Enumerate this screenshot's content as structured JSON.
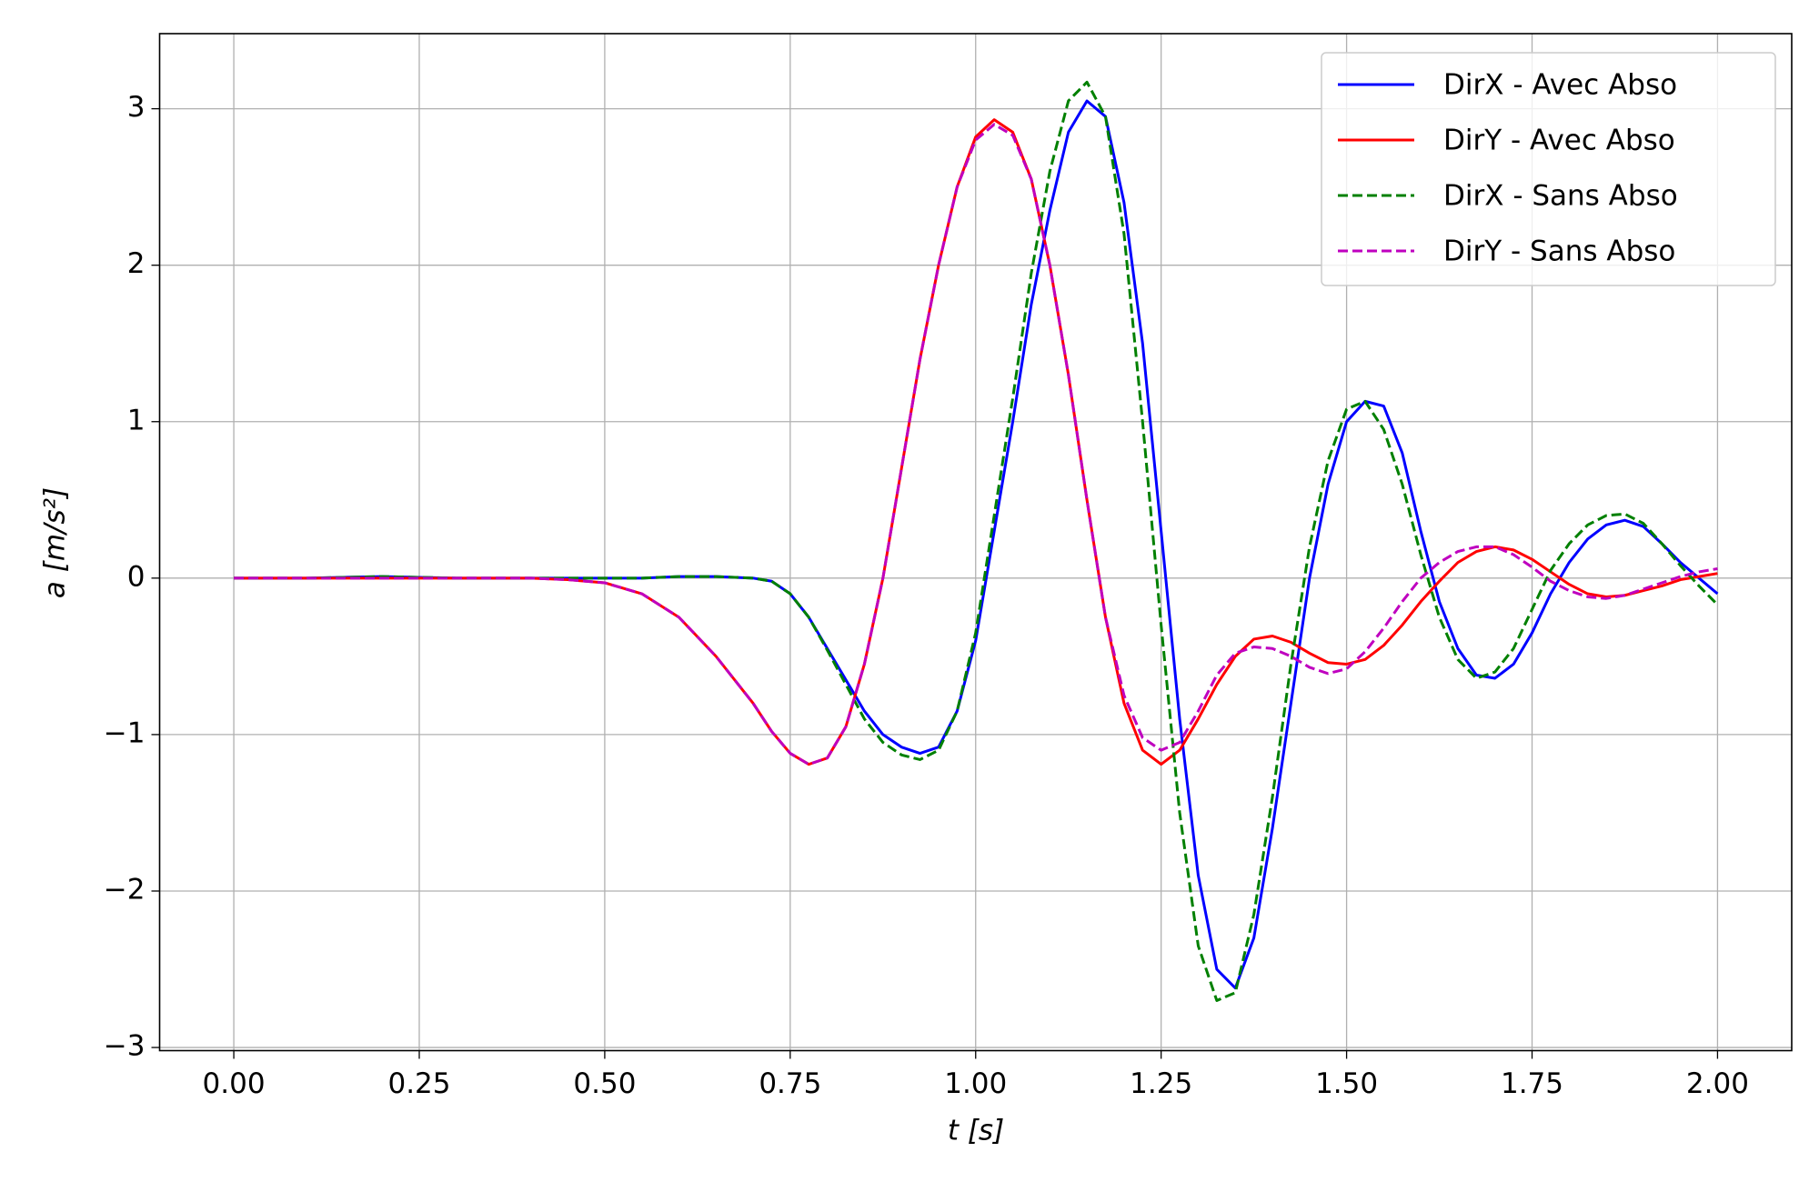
{
  "chart_data": {
    "type": "line",
    "x_label": "t [s]",
    "y_label": "a [m/s²]",
    "xlim": [
      -0.1,
      2.1
    ],
    "ylim": [
      -3.02,
      3.48
    ],
    "xticks": [
      {
        "value": 0,
        "label": "0.00"
      },
      {
        "value": 0.25,
        "label": "0.25"
      },
      {
        "value": 0.5,
        "label": "0.50"
      },
      {
        "value": 0.75,
        "label": "0.75"
      },
      {
        "value": 1,
        "label": "1.00"
      },
      {
        "value": 1.25,
        "label": "1.25"
      },
      {
        "value": 1.5,
        "label": "1.50"
      },
      {
        "value": 1.75,
        "label": "1.75"
      },
      {
        "value": 2,
        "label": "2.00"
      }
    ],
    "yticks": [
      {
        "value": -3,
        "label": "−3"
      },
      {
        "value": -2,
        "label": "−2"
      },
      {
        "value": -1,
        "label": "−1"
      },
      0,
      1,
      2,
      3
    ],
    "grid": true,
    "legend": "upper right",
    "x": [
      0,
      0.1,
      0.2,
      0.3,
      0.4,
      0.45,
      0.5,
      0.55,
      0.6,
      0.65,
      0.7,
      0.725,
      0.75,
      0.775,
      0.8,
      0.825,
      0.85,
      0.875,
      0.9,
      0.925,
      0.95,
      0.975,
      1.0,
      1.025,
      1.05,
      1.075,
      1.1,
      1.125,
      1.15,
      1.175,
      1.2,
      1.225,
      1.25,
      1.275,
      1.3,
      1.325,
      1.35,
      1.375,
      1.4,
      1.425,
      1.45,
      1.475,
      1.5,
      1.525,
      1.55,
      1.575,
      1.6,
      1.625,
      1.65,
      1.675,
      1.7,
      1.725,
      1.75,
      1.775,
      1.8,
      1.825,
      1.85,
      1.875,
      1.9,
      1.925,
      1.95,
      1.975,
      2.0
    ],
    "series": [
      {
        "name": "DirX - Avec Abso",
        "color": "#0000ff",
        "linestyle": "solid",
        "values": [
          0,
          0,
          0.01,
          0,
          0,
          0,
          0,
          0,
          0.01,
          0.01,
          0,
          -0.02,
          -0.1,
          -0.25,
          -0.45,
          -0.65,
          -0.85,
          -1.0,
          -1.08,
          -1.12,
          -1.08,
          -0.85,
          -0.4,
          0.3,
          1.0,
          1.75,
          2.35,
          2.85,
          3.05,
          2.95,
          2.4,
          1.5,
          0.3,
          -0.9,
          -1.9,
          -2.5,
          -2.62,
          -2.3,
          -1.6,
          -0.8,
          0,
          0.6,
          1.0,
          1.13,
          1.1,
          0.8,
          0.3,
          -0.15,
          -0.45,
          -0.62,
          -0.64,
          -0.55,
          -0.35,
          -0.1,
          0.1,
          0.25,
          0.34,
          0.37,
          0.33,
          0.22,
          0.1,
          0,
          -0.1
        ]
      },
      {
        "name": "DirY - Avec Abso",
        "color": "#ff0000",
        "linestyle": "solid",
        "values": [
          0,
          0,
          0,
          0,
          0,
          -0.01,
          -0.03,
          -0.1,
          -0.25,
          -0.5,
          -0.8,
          -0.98,
          -1.12,
          -1.19,
          -1.15,
          -0.95,
          -0.55,
          0,
          0.7,
          1.4,
          2.0,
          2.5,
          2.82,
          2.93,
          2.85,
          2.55,
          2.0,
          1.3,
          0.5,
          -0.25,
          -0.8,
          -1.1,
          -1.19,
          -1.1,
          -0.9,
          -0.68,
          -0.5,
          -0.39,
          -0.37,
          -0.41,
          -0.48,
          -0.54,
          -0.55,
          -0.52,
          -0.43,
          -0.3,
          -0.15,
          -0.02,
          0.1,
          0.17,
          0.2,
          0.18,
          0.12,
          0.04,
          -0.04,
          -0.1,
          -0.12,
          -0.11,
          -0.08,
          -0.05,
          -0.01,
          0.01,
          0.03
        ]
      },
      {
        "name": "DirX - Sans Abso",
        "color": "#008000",
        "linestyle": "dashed",
        "values": [
          0,
          0,
          0.01,
          0,
          0,
          0,
          0,
          0,
          0.01,
          0.01,
          0,
          -0.02,
          -0.1,
          -0.25,
          -0.46,
          -0.68,
          -0.9,
          -1.05,
          -1.13,
          -1.16,
          -1.1,
          -0.85,
          -0.35,
          0.4,
          1.15,
          1.95,
          2.6,
          3.05,
          3.17,
          2.95,
          2.2,
          1.0,
          -0.3,
          -1.5,
          -2.35,
          -2.7,
          -2.65,
          -2.15,
          -1.4,
          -0.55,
          0.2,
          0.75,
          1.08,
          1.13,
          0.95,
          0.6,
          0.15,
          -0.25,
          -0.52,
          -0.64,
          -0.6,
          -0.45,
          -0.2,
          0.05,
          0.22,
          0.34,
          0.4,
          0.41,
          0.35,
          0.22,
          0.08,
          -0.05,
          -0.17
        ]
      },
      {
        "name": "DirY - Sans Abso",
        "color": "#bf00bf",
        "linestyle": "dashed",
        "values": [
          0,
          0,
          0,
          0,
          0,
          -0.01,
          -0.03,
          -0.1,
          -0.25,
          -0.5,
          -0.8,
          -0.98,
          -1.12,
          -1.19,
          -1.15,
          -0.95,
          -0.55,
          0,
          0.7,
          1.4,
          2.0,
          2.5,
          2.8,
          2.9,
          2.83,
          2.55,
          2.0,
          1.3,
          0.5,
          -0.25,
          -0.75,
          -1.02,
          -1.1,
          -1.05,
          -0.85,
          -0.62,
          -0.48,
          -0.44,
          -0.45,
          -0.5,
          -0.57,
          -0.61,
          -0.58,
          -0.47,
          -0.32,
          -0.15,
          0,
          0.1,
          0.17,
          0.2,
          0.2,
          0.15,
          0.07,
          -0.02,
          -0.08,
          -0.12,
          -0.13,
          -0.11,
          -0.07,
          -0.03,
          0.01,
          0.04,
          0.06
        ]
      }
    ]
  }
}
